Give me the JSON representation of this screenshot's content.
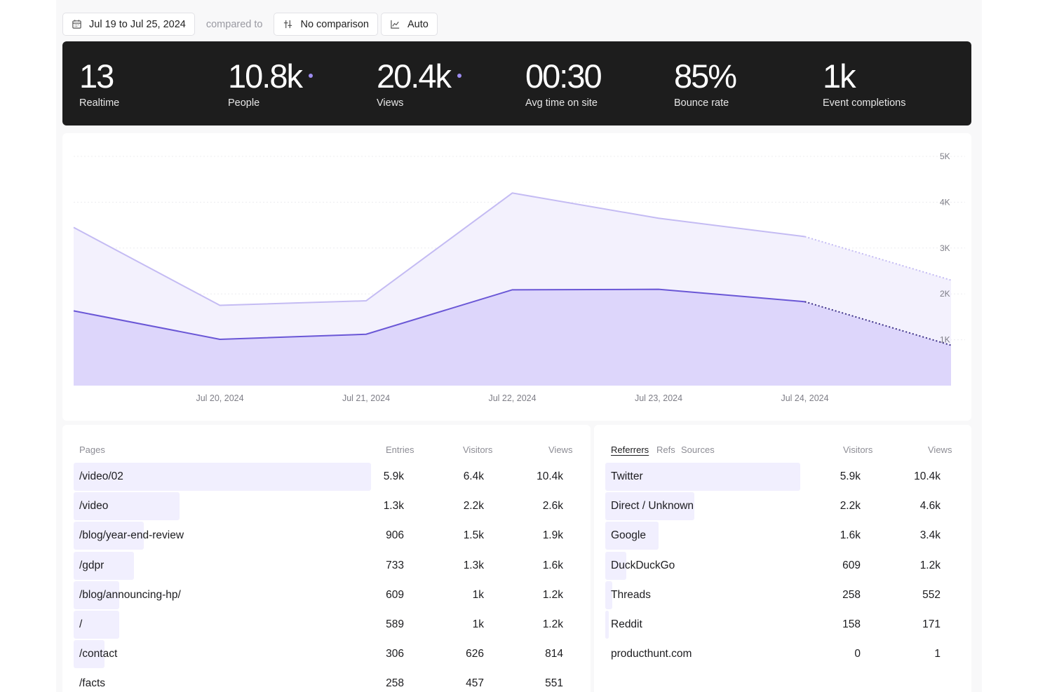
{
  "toolbar": {
    "date_range": "Jul 19 to Jul 25, 2024",
    "compared_to": "compared to",
    "comparison": "No comparison",
    "interval": "Auto"
  },
  "stats": [
    {
      "value": "13",
      "label": "Realtime",
      "dot": false
    },
    {
      "value": "10.8k",
      "label": "People",
      "dot": true
    },
    {
      "value": "20.4k",
      "label": "Views",
      "dot": true
    },
    {
      "value": "00:30",
      "label": "Avg time on site",
      "dot": false
    },
    {
      "value": "85%",
      "label": "Bounce rate",
      "dot": false
    },
    {
      "value": "1k",
      "label": "Event completions",
      "dot": false
    }
  ],
  "chart_data": {
    "type": "area",
    "x": [
      "Jul 19, 2024",
      "Jul 20, 2024",
      "Jul 21, 2024",
      "Jul 22, 2024",
      "Jul 23, 2024",
      "Jul 24, 2024",
      "Jul 25, 2024"
    ],
    "x_tick_labels": [
      "Jul 20, 2024",
      "Jul 21, 2024",
      "Jul 22, 2024",
      "Jul 23, 2024",
      "Jul 24, 2024"
    ],
    "y_tick_labels": [
      "5K",
      "4K",
      "3K",
      "2K",
      "1K"
    ],
    "y_ticks": [
      5000,
      4000,
      3000,
      2000,
      1000
    ],
    "ylim": [
      0,
      5000
    ],
    "y_axis_position": "right",
    "grid": true,
    "partial_last_segment": true,
    "series": [
      {
        "values": [
          3450,
          1750,
          1850,
          4200,
          3650,
          3250,
          2300
        ],
        "color": "#c4bbf3",
        "fill": "#f3f1fd"
      },
      {
        "values": [
          1630,
          1010,
          1120,
          2090,
          2100,
          1830,
          880
        ],
        "color": "#6a57d6",
        "fill": "#ddd6fb"
      }
    ]
  },
  "pages": {
    "headers": {
      "name": "Pages",
      "entries": "Entries",
      "visitors": "Visitors",
      "views": "Views"
    },
    "rows": [
      {
        "path": "/video/02",
        "entries": "5.9k",
        "visitors": "6.4k",
        "views": "10.4k",
        "share": 1.0
      },
      {
        "path": "/video",
        "entries": "1.3k",
        "visitors": "2.2k",
        "views": "2.6k",
        "share": 0.356
      },
      {
        "path": "/blog/year-end-review",
        "entries": "906",
        "visitors": "1.5k",
        "views": "1.9k",
        "share": 0.235
      },
      {
        "path": "/gdpr",
        "entries": "733",
        "visitors": "1.3k",
        "views": "1.6k",
        "share": 0.203
      },
      {
        "path": "/blog/announcing-hp/",
        "entries": "609",
        "visitors": "1k",
        "views": "1.2k",
        "share": 0.153
      },
      {
        "path": "/",
        "entries": "589",
        "visitors": "1k",
        "views": "1.2k",
        "share": 0.153
      },
      {
        "path": "/contact",
        "entries": "306",
        "visitors": "626",
        "views": "814",
        "share": 0.103
      },
      {
        "path": "/facts",
        "entries": "258",
        "visitors": "457",
        "views": "551",
        "share": 0.0
      }
    ]
  },
  "referrers": {
    "tabs": [
      "Referrers",
      "Refs",
      "Sources"
    ],
    "active_tab": "Referrers",
    "headers": {
      "visitors": "Visitors",
      "views": "Views"
    },
    "rows": [
      {
        "name": "Twitter",
        "visitors": "5.9k",
        "views": "10.4k",
        "share": 1.0
      },
      {
        "name": "Direct / Unknown",
        "visitors": "2.2k",
        "views": "4.6k",
        "share": 0.457
      },
      {
        "name": "Google",
        "visitors": "1.6k",
        "views": "3.4k",
        "share": 0.273
      },
      {
        "name": "DuckDuckGo",
        "visitors": "609",
        "views": "1.2k",
        "share": 0.108
      },
      {
        "name": "Threads",
        "visitors": "258",
        "views": "552",
        "share": 0.036
      },
      {
        "name": "Reddit",
        "visitors": "158",
        "views": "171",
        "share": 0.018
      },
      {
        "name": "producthunt.com",
        "visitors": "0",
        "views": "1",
        "share": 0.0
      }
    ]
  },
  "colors": {
    "accent": "#6a57d6",
    "accent_light": "#c4bbf3",
    "bar_fill": "#f1effe",
    "stats_bg": "#1d1d1d"
  }
}
